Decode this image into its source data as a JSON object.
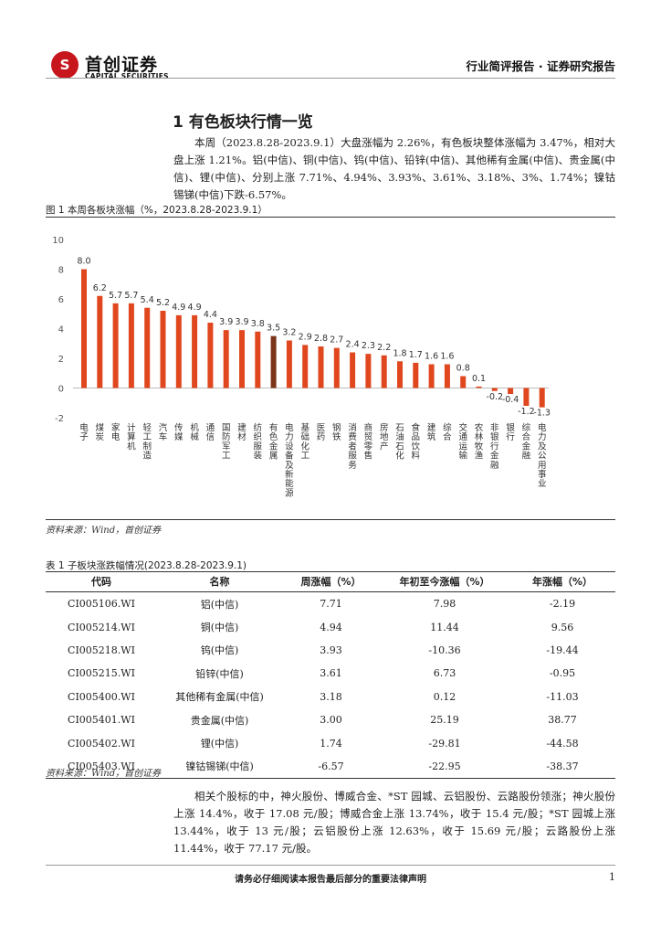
{
  "header": {
    "logo_cn": "首创证券",
    "logo_en": "CAPITAL SECURITIES",
    "report_type": "行业简评报告 · 证券研究报告"
  },
  "section": {
    "title": "1 有色板块行情一览",
    "paragraph1": "本周（2023.8.28-2023.9.1）大盘涨幅为 2.26%，有色板块整体涨幅为 3.47%，相对大盘上涨 1.21%。铝(中信)、铜(中信)、钨(中信)、铅锌(中信)、其他稀有金属(中信)、贵金属(中信)、锂(中信)、分别上涨 7.71%、4.94%、3.93%、3.61%、3.18%、3%、1.74%；镍钴锡锑(中信)下跌-6.57%。"
  },
  "figure": {
    "caption": "图 1 本周各板块涨幅（%，2023.8.28-2023.9.1）",
    "source": "资料来源：Wind，首创证券"
  },
  "chart_data": {
    "type": "bar",
    "ylim": [
      -2,
      10
    ],
    "yticks": [
      -2,
      0,
      2,
      4,
      6,
      8,
      10
    ],
    "grid": false,
    "bar_color": "#e0471e",
    "highlight_color": "#7a3418",
    "highlight_category": "有色金属",
    "categories": [
      "电子",
      "煤炭",
      "家电",
      "计算机",
      "轻工制造",
      "汽车",
      "传媒",
      "机械",
      "通信",
      "国防军工",
      "建材",
      "纺织服装",
      "有色金属",
      "电力设备及新能源",
      "基础化工",
      "医药",
      "钢铁",
      "消费者服务",
      "商贸零售",
      "房地产",
      "石油石化",
      "食品饮料",
      "建筑",
      "综合",
      "交通运输",
      "农林牧渔",
      "非银行金融",
      "银行",
      "综合金融",
      "电力及公用事业"
    ],
    "values": [
      8.0,
      6.2,
      5.7,
      5.7,
      5.4,
      5.2,
      4.9,
      4.9,
      4.4,
      3.9,
      3.9,
      3.8,
      3.5,
      3.2,
      2.9,
      2.8,
      2.7,
      2.4,
      2.3,
      2.2,
      1.8,
      1.7,
      1.6,
      1.6,
      0.8,
      0.1,
      -0.2,
      -0.4,
      -1.2,
      -1.3
    ],
    "labels": [
      "8.0",
      "6.2",
      "5.7",
      "5.7",
      "5.4",
      "5.2",
      "4.9",
      "4.9",
      "4.4",
      "3.9",
      "3.9",
      "3.8",
      "3.5",
      "3.2",
      "2.9",
      "2.8",
      "2.7",
      "2.4",
      "2.3",
      "2.2",
      "1.8",
      "1.7",
      "1.6",
      "1.6",
      "0.8",
      "0.1",
      "-0.2",
      "-0.4",
      "-1.2",
      "-1.3"
    ]
  },
  "table": {
    "caption": "表 1 子板块涨跌幅情况(2023.8.28-2023.9.1)",
    "headers": [
      "代码",
      "名称",
      "周涨幅（%）",
      "年初至今涨幅（%）",
      "年涨幅（%）"
    ],
    "rows": [
      [
        "CI005106.WI",
        "铝(中信)",
        "7.71",
        "7.98",
        "-2.19"
      ],
      [
        "CI005214.WI",
        "铜(中信)",
        "4.94",
        "11.44",
        "9.56"
      ],
      [
        "CI005218.WI",
        "钨(中信)",
        "3.93",
        "-10.36",
        "-19.44"
      ],
      [
        "CI005215.WI",
        "铅锌(中信)",
        "3.61",
        "6.73",
        "-0.95"
      ],
      [
        "CI005400.WI",
        "其他稀有金属(中信)",
        "3.18",
        "0.12",
        "-11.03"
      ],
      [
        "CI005401.WI",
        "贵金属(中信)",
        "3.00",
        "25.19",
        "38.77"
      ],
      [
        "CI005402.WI",
        "锂(中信)",
        "1.74",
        "-29.81",
        "-44.58"
      ],
      [
        "CI005403.WI",
        "镍钴锡锑(中信)",
        "-6.57",
        "-22.95",
        "-38.37"
      ]
    ],
    "source": "资料来源：Wind，首创证券"
  },
  "paragraph2": "相关个股标的中，神火股份、博威合金、*ST 园城、云铝股份、云路股份领涨；神火股份上涨 14.4%，收于 17.08 元/股；博威合金上涨 13.74%，收于 15.4 元/股；*ST 园城上涨 13.44%，收于 13 元/股；云铝股份上涨 12.63%，收于 15.69 元/股；云路股份上涨 11.44%，收于 77.17 元/股。",
  "footer": {
    "disclaimer": "请务必仔细阅读本报告最后部分的重要法律声明",
    "page": "1"
  }
}
